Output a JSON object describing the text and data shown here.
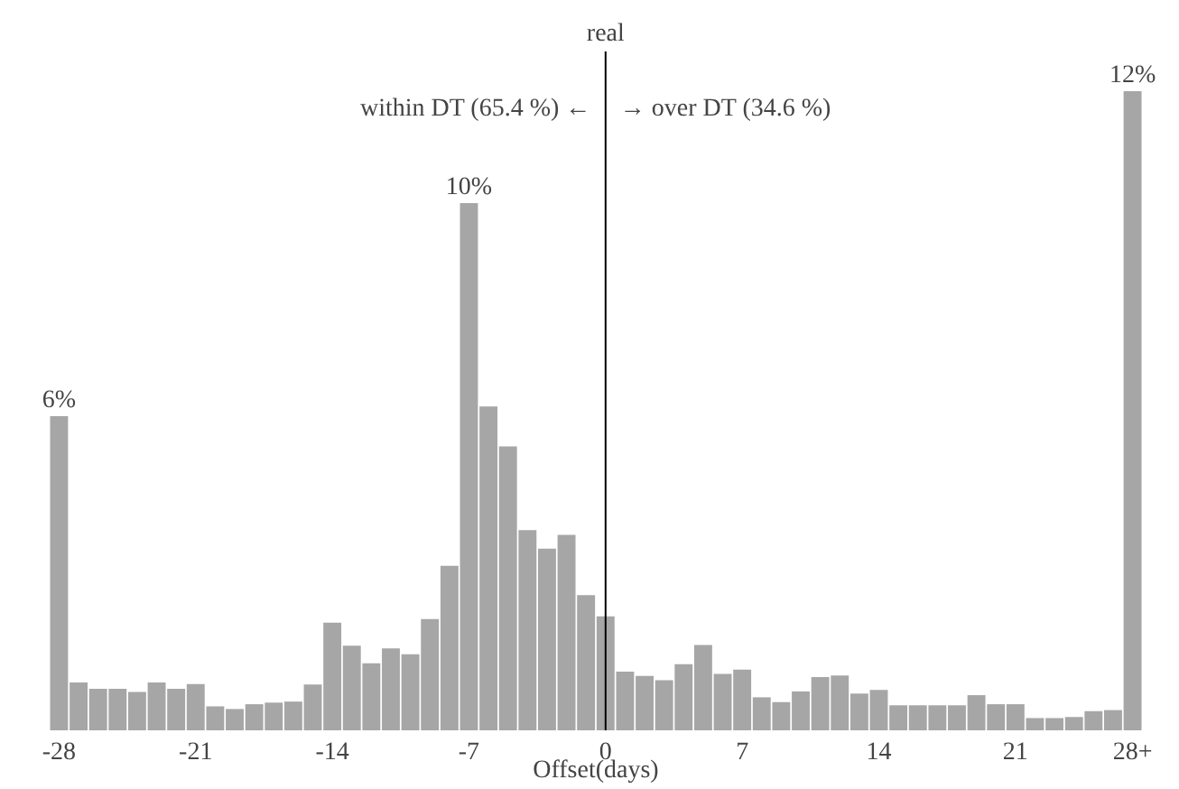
{
  "chart_data": {
    "type": "bar",
    "xlabel": "Offset(days)",
    "categories": [
      "-28",
      null,
      null,
      null,
      null,
      null,
      null,
      "-21",
      null,
      null,
      null,
      null,
      null,
      null,
      "-14",
      null,
      null,
      null,
      null,
      null,
      null,
      "-7",
      null,
      null,
      null,
      null,
      null,
      null,
      "0",
      null,
      null,
      null,
      null,
      null,
      null,
      "7",
      null,
      null,
      null,
      null,
      null,
      null,
      "14",
      null,
      null,
      null,
      null,
      null,
      null,
      "21",
      null,
      null,
      null,
      null,
      null,
      "28+"
    ],
    "values": [
      5.9,
      0.9,
      0.78,
      0.78,
      0.72,
      0.9,
      0.78,
      0.87,
      0.45,
      0.4,
      0.49,
      0.52,
      0.54,
      0.86,
      2.02,
      1.59,
      1.26,
      1.54,
      1.43,
      2.09,
      3.09,
      9.9,
      6.08,
      5.33,
      3.76,
      3.41,
      3.67,
      2.54,
      2.14,
      1.1,
      1.02,
      0.94,
      1.24,
      1.6,
      1.06,
      1.14,
      0.62,
      0.53,
      0.73,
      1.0,
      1.03,
      0.69,
      0.76,
      0.47,
      0.47,
      0.47,
      0.47,
      0.66,
      0.49,
      0.49,
      0.23,
      0.23,
      0.25,
      0.36,
      0.38,
      12
    ],
    "value_labels": [
      "6%",
      null,
      null,
      null,
      null,
      null,
      null,
      null,
      null,
      null,
      null,
      null,
      null,
      null,
      null,
      null,
      null,
      null,
      null,
      null,
      null,
      "10%",
      null,
      null,
      null,
      null,
      null,
      null,
      null,
      null,
      null,
      null,
      null,
      null,
      null,
      null,
      null,
      null,
      null,
      null,
      null,
      null,
      null,
      null,
      null,
      null,
      null,
      null,
      null,
      null,
      null,
      null,
      null,
      null,
      null,
      "12%"
    ],
    "color": "#a6a6a6",
    "ref_lines": [
      {
        "axis": "x",
        "value": "0",
        "label": "real",
        "color": "#000000"
      }
    ],
    "annotations": [
      "within DT (65.4 %) ←",
      "→ over DT (34.6 %)"
    ],
    "grid": false,
    "tick_labels": "x"
  }
}
